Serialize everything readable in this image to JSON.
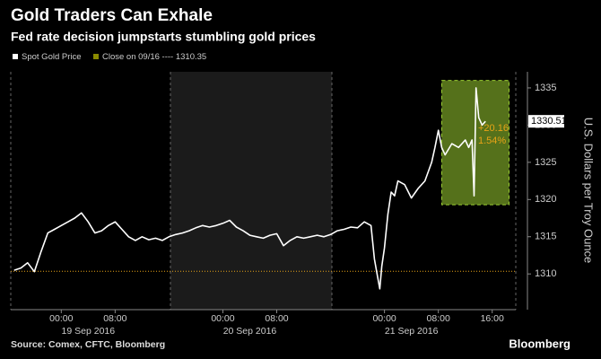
{
  "chart_data": {
    "type": "line",
    "title": "Gold Traders Can Exhale",
    "subtitle": "Fed rate decision jumpstarts stumbling gold prices",
    "y_axis_label": "U.S. Dollars per Troy Ounce",
    "source": "Source: Comex, CFTC, Bloomberg",
    "brand": "Bloomberg",
    "x": [
      -7,
      -6,
      -5,
      -4,
      -3,
      -2,
      -1,
      0,
      1,
      2,
      3,
      4,
      5,
      6,
      7,
      8,
      9,
      10,
      11,
      12,
      13,
      14,
      15,
      16,
      17,
      18,
      19,
      20,
      21,
      22,
      23,
      24,
      25,
      26,
      27,
      28,
      29,
      30,
      31,
      32,
      33,
      34,
      35,
      36,
      37,
      38,
      39,
      40,
      41,
      42,
      43,
      44,
      45,
      46,
      46.5,
      47,
      47.3,
      47.6,
      48,
      48.5,
      49,
      49.5,
      50,
      51,
      52,
      53,
      54,
      55,
      55.5,
      56,
      56.5,
      57,
      58,
      59,
      60,
      60.5,
      61,
      61.3,
      61.6,
      62,
      62.5,
      63
    ],
    "series": [
      {
        "name": "Spot Gold Price",
        "color": "#ffffff",
        "values": [
          1310.5,
          1310.8,
          1311.5,
          1310.3,
          1313,
          1315.5,
          1316,
          1316.5,
          1317,
          1317.5,
          1318.2,
          1317,
          1315.5,
          1315.8,
          1316.5,
          1317,
          1316,
          1315,
          1314.5,
          1315,
          1314.6,
          1314.8,
          1314.5,
          1315,
          1315.3,
          1315.5,
          1315.8,
          1316.2,
          1316.5,
          1316.3,
          1316.5,
          1316.8,
          1317.2,
          1316.3,
          1315.8,
          1315.2,
          1315,
          1314.8,
          1315.2,
          1315.4,
          1313.8,
          1314.5,
          1315,
          1314.8,
          1315,
          1315.2,
          1315,
          1315.3,
          1315.8,
          1316,
          1316.3,
          1316.2,
          1317,
          1316.5,
          1312,
          1309.5,
          1308,
          1311,
          1313.5,
          1318,
          1321,
          1320.5,
          1322.5,
          1322,
          1320.2,
          1321.5,
          1322.5,
          1325,
          1327,
          1329.3,
          1327,
          1326,
          1327.5,
          1327,
          1328,
          1327,
          1328,
          1320.5,
          1335,
          1331,
          1330,
          1330.51
        ]
      }
    ],
    "last_value_label": "1330.51",
    "reference": {
      "name": "Close on 09/16 ---- 1310.35",
      "value": 1310.35,
      "color": "#e8a317"
    },
    "highlight": {
      "xlim": [
        56.5,
        66.5
      ],
      "ylim": [
        1319.3,
        1336
      ],
      "color": "#9acd32"
    },
    "annotations": [
      "+20.16",
      "1.54%"
    ],
    "xlim": [
      -7.5,
      67.5
    ],
    "xticks": [
      {
        "value": 0,
        "label": "00:00"
      },
      {
        "value": 8,
        "label": "08:00"
      },
      {
        "value": 24,
        "label": "00:00"
      },
      {
        "value": 32,
        "label": "08:00"
      },
      {
        "value": 48,
        "label": "00:00"
      },
      {
        "value": 56,
        "label": "08:00"
      },
      {
        "value": 64,
        "label": "16:00"
      }
    ],
    "dates": [
      "19 Sep 2016",
      "20 Sep 2016",
      "21 Sep 2016"
    ],
    "ylim": [
      1305.2,
      1336.2
    ],
    "yticks": [
      1310,
      1315,
      1320,
      1325,
      1330,
      1335
    ]
  }
}
